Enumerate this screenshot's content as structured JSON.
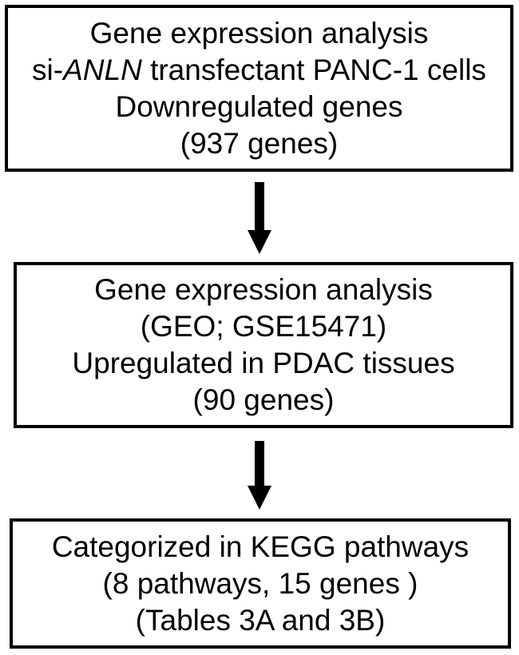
{
  "figure": {
    "type": "flowchart",
    "colors": {
      "background": "#ffffff",
      "box_border": "#000000",
      "text": "#000000",
      "arrow": "#000000"
    },
    "boxes": [
      {
        "id": "step-1",
        "lines": [
          {
            "text": "Gene expression analysis"
          },
          {
            "pre": "si-",
            "gene": "ANLN",
            "post": " transfectant PANC-1 cells"
          },
          {
            "text": "Downregulated genes"
          },
          {
            "text": "(937 genes)"
          }
        ]
      },
      {
        "id": "step-2",
        "lines": [
          {
            "text": "Gene expression analysis"
          },
          {
            "text": "(GEO; GSE15471)"
          },
          {
            "text": "Upregulated in PDAC tissues"
          },
          {
            "text": "(90 genes)"
          }
        ]
      },
      {
        "id": "step-3",
        "lines": [
          {
            "text": "Categorized in KEGG pathways"
          },
          {
            "text": "(8 pathways, 15 genes )"
          },
          {
            "text": "(Tables 3A and 3B)"
          }
        ]
      }
    ],
    "arrows": [
      {
        "id": "arrow-1",
        "direction": "down"
      },
      {
        "id": "arrow-2",
        "direction": "down"
      }
    ]
  }
}
